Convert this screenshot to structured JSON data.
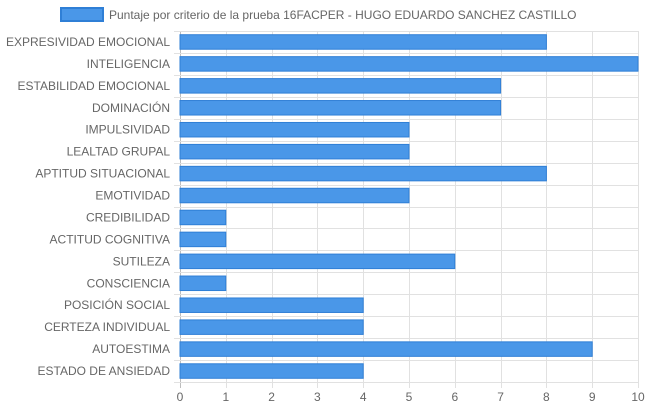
{
  "chart_data": {
    "type": "bar",
    "orientation": "horizontal",
    "categories": [
      "EXPRESIVIDAD EMOCIONAL",
      "INTELIGENCIA",
      "ESTABILIDAD EMOCIONAL",
      "DOMINACIÓN",
      "IMPULSIVIDAD",
      "LEALTAD GRUPAL",
      "APTITUD SITUACIONAL",
      "EMOTIVIDAD",
      "CREDIBILIDAD",
      "ACTITUD COGNITIVA",
      "SUTILEZA",
      "CONSCIENCIA",
      "POSICIÓN SOCIAL",
      "CERTEZA INDIVIDUAL",
      "AUTOESTIMA",
      "ESTADO DE ANSIEDAD"
    ],
    "series": [
      {
        "name": "Puntaje por criterio de la prueba 16FACPER - HUGO EDUARDO SANCHEZ CASTILLO",
        "values": [
          8,
          10,
          7,
          7,
          5,
          5,
          8,
          5,
          1,
          1,
          6,
          1,
          4,
          4,
          9,
          4
        ]
      }
    ],
    "xlim": [
      0,
      10
    ],
    "xticks": [
      "0",
      "1",
      "2",
      "3",
      "4",
      "5",
      "6",
      "7",
      "8",
      "9",
      "10"
    ],
    "grid": true,
    "legend_position": "top",
    "colors": {
      "bar_fill": "#4a97e8",
      "bar_border": "#2f7fd6",
      "grid": "#e1e1e1",
      "text": "#666666"
    }
  }
}
